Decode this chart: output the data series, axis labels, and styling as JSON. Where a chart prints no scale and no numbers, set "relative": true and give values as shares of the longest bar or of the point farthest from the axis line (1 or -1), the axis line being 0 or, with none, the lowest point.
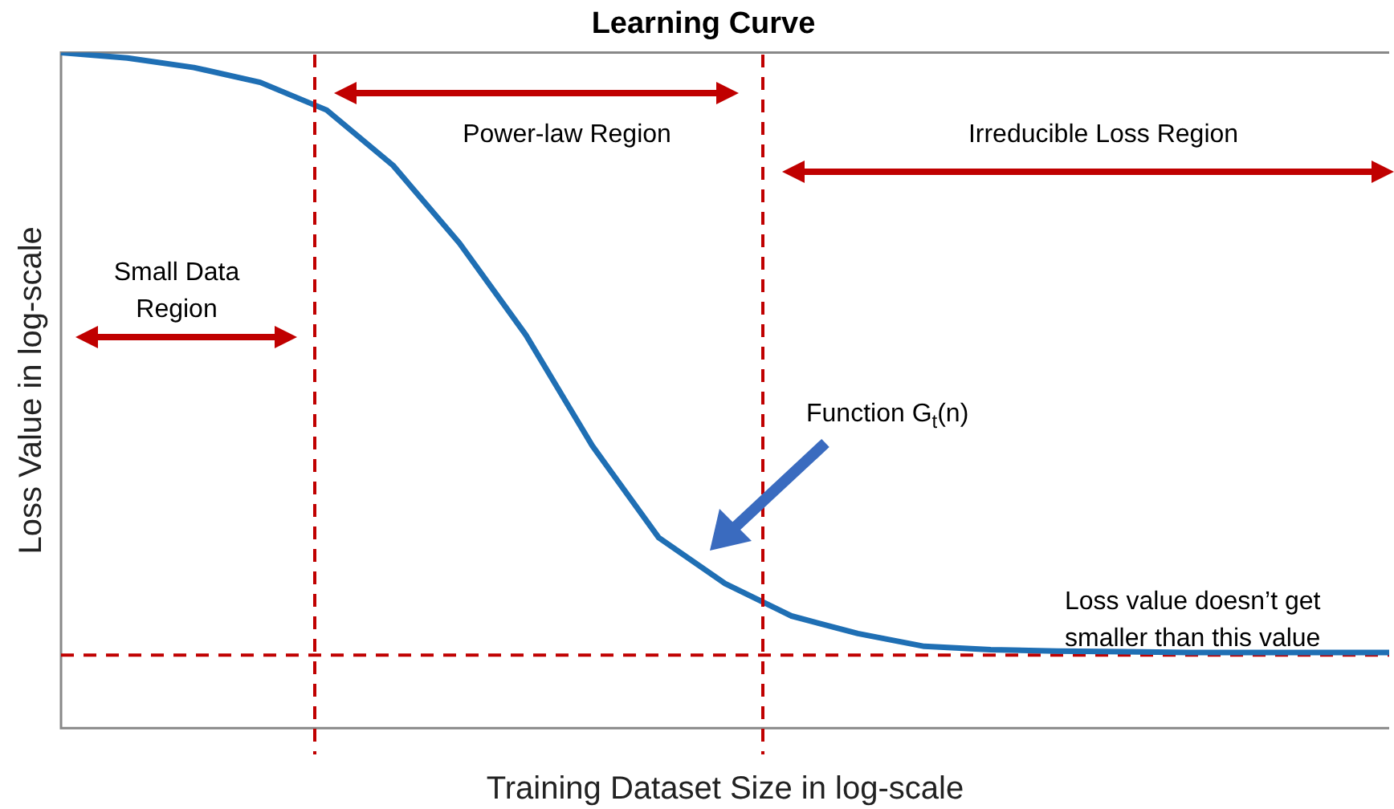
{
  "chart_data": {
    "type": "line",
    "title": "Learning Curve",
    "xlabel": "Training Dataset Size in log-scale",
    "ylabel": "Loss Value in log-scale",
    "relative": true,
    "legend": false,
    "marker": "none",
    "line_style": "solid",
    "categories": [
      null,
      null,
      null,
      null,
      null,
      null,
      null,
      null,
      null,
      null,
      null,
      null,
      null,
      null,
      null,
      null,
      null,
      null,
      null,
      null,
      null
    ],
    "series": [
      {
        "color": "#1f6fb4",
        "values": [
          1,
          0.992,
          0.978,
          0.956,
          0.915,
          0.833,
          0.718,
          0.582,
          0.418,
          0.282,
          0.214,
          0.166,
          0.14,
          0.121,
          0.116,
          0.114,
          0.113,
          0.112,
          0.112,
          0.112,
          0.112
        ]
      }
    ],
    "ref_lines": [
      {
        "axis": "y",
        "value": 0.108,
        "color": "#c00000",
        "line_style": "dashed"
      }
    ],
    "annotations": [
      "Small Data Region",
      "Power-law Region",
      "Irreducible Loss Region",
      "Function G$_{t}$(n)",
      "Loss value doesn’t get smaller than this value"
    ]
  }
}
